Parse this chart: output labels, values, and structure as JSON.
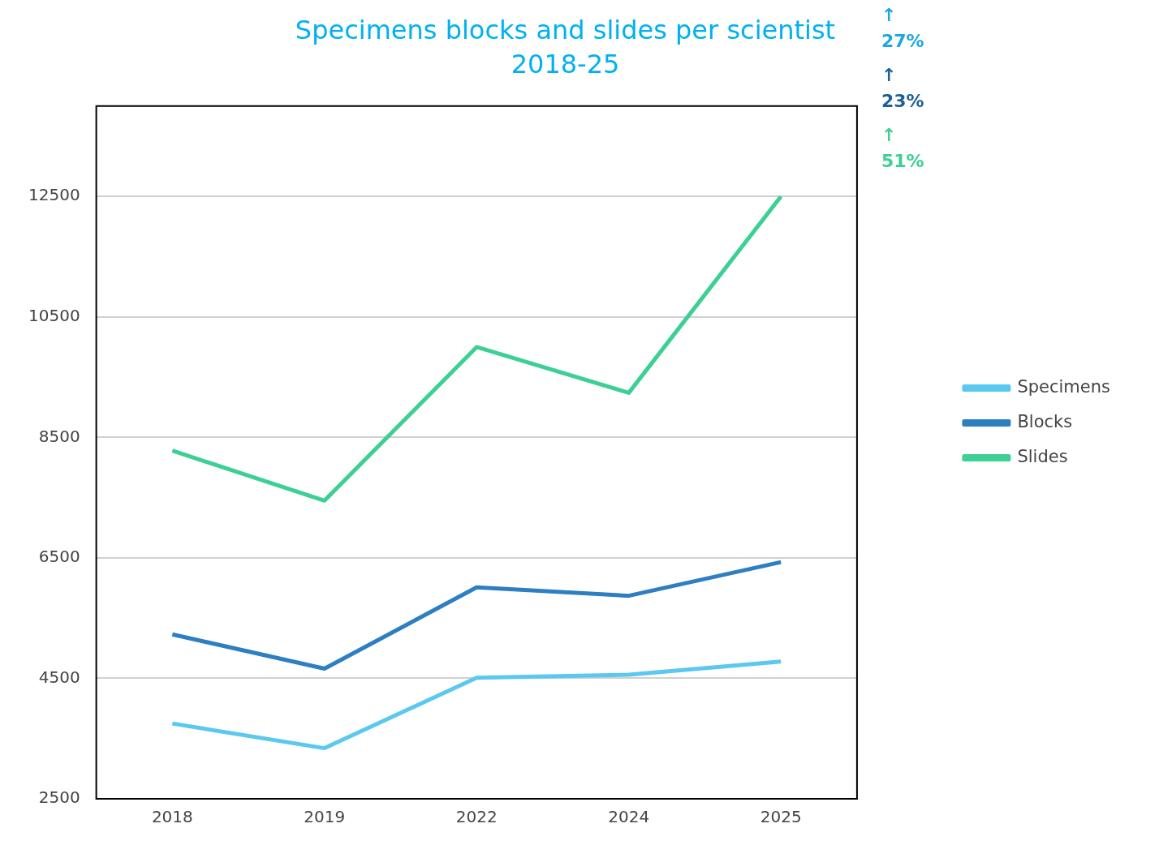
{
  "chart_data": {
    "type": "line",
    "title": "Specimens blocks and slides per scientist",
    "subtitle": "2018-25",
    "categories": [
      "2018",
      "2019",
      "2022",
      "2024",
      "2025"
    ],
    "series": [
      {
        "name": "Specimens",
        "color": "#5bc8f0",
        "values": [
          3750,
          3340,
          4510,
          4560,
          4780
        ]
      },
      {
        "name": "Blocks",
        "color": "#2e7fc2",
        "values": [
          5230,
          4660,
          6010,
          5870,
          6430
        ]
      },
      {
        "name": "Slides",
        "color": "#3ecf95",
        "values": [
          8280,
          7450,
          10000,
          9240,
          12500
        ]
      }
    ],
    "ylim": [
      2500,
      14000
    ],
    "yticks": [
      2500,
      4500,
      6500,
      8500,
      10500,
      12500
    ],
    "grid": "y",
    "legend": "right",
    "marker": "none",
    "line_style": "solid",
    "annotations": [
      "↑\n27%",
      "↑\n23%",
      "↑\n51%"
    ]
  }
}
